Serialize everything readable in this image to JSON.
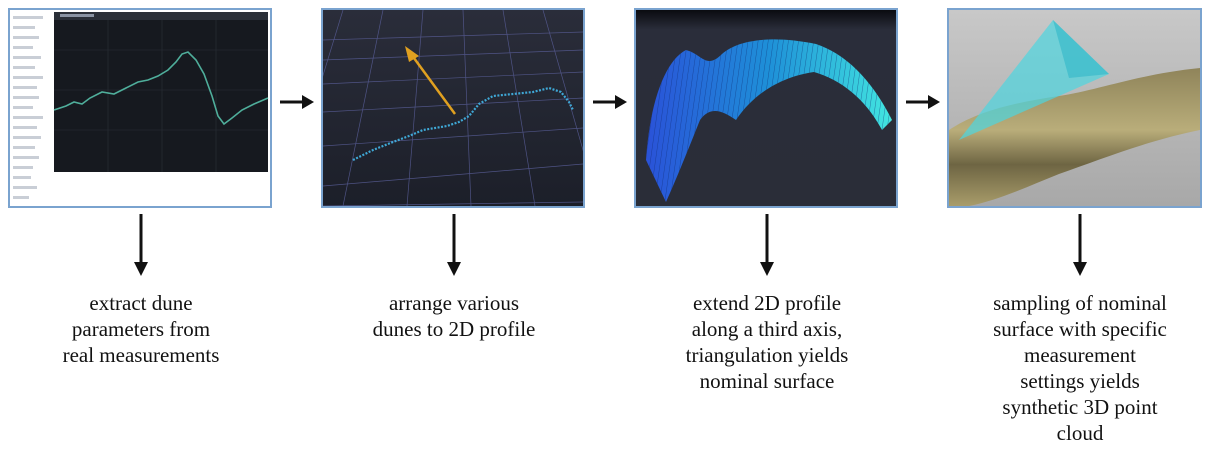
{
  "steps": [
    {
      "caption": "extract dune\nparameters from\nreal measurements"
    },
    {
      "caption": "arrange various\ndunes to 2D profile"
    },
    {
      "caption": "extend 2D profile\nalong a third axis,\ntriangulation yields\nnominal surface"
    },
    {
      "caption": "sampling of nominal\nsurface with specific\nmeasurement\nsettings yields\nsynthetic 3D point\ncloud"
    }
  ],
  "colors": {
    "panel_border": "#7aa3cf",
    "arrow": "#111111"
  }
}
